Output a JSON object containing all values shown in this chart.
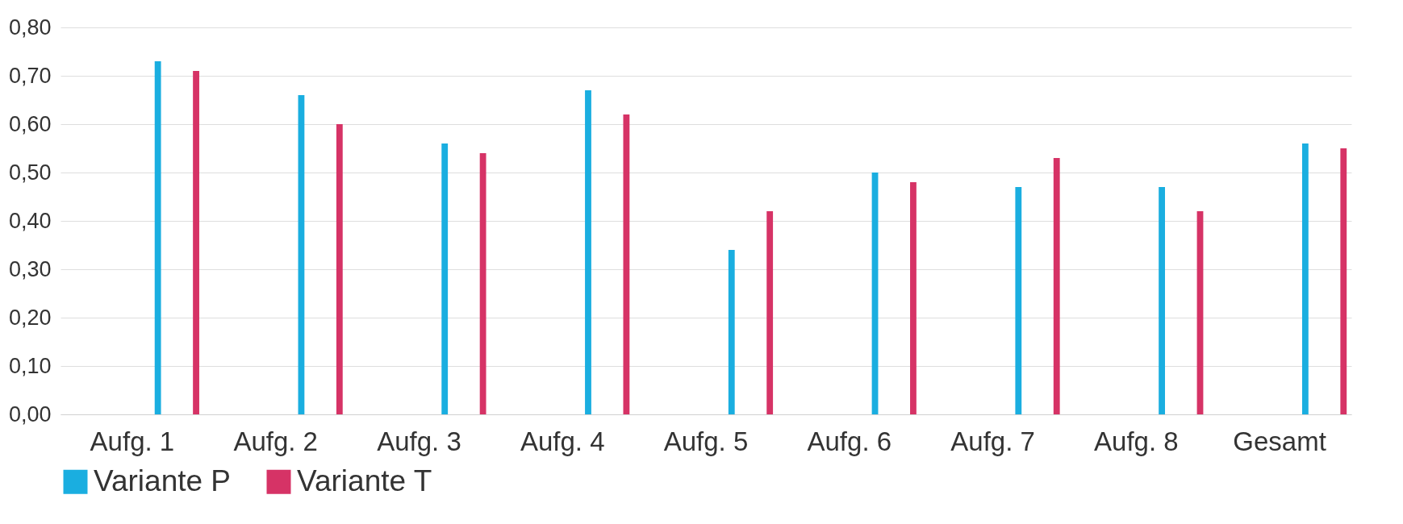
{
  "chart_data": {
    "type": "bar",
    "categories": [
      "Aufg. 1",
      "Aufg. 2",
      "Aufg. 3",
      "Aufg. 4",
      "Aufg. 5",
      "Aufg. 6",
      "Aufg. 7",
      "Aufg. 8",
      "Gesamt"
    ],
    "series": [
      {
        "name": "Variante P",
        "color": "#1aaee0",
        "values": [
          0.73,
          0.66,
          0.56,
          0.67,
          0.34,
          0.5,
          0.47,
          0.47,
          0.56
        ]
      },
      {
        "name": "Variante T",
        "color": "#d63366",
        "values": [
          0.71,
          0.6,
          0.54,
          0.62,
          0.42,
          0.48,
          0.53,
          0.42,
          0.55
        ]
      }
    ],
    "ylim": [
      0,
      0.8
    ],
    "yticks": [
      {
        "value": 0,
        "label": "0,00"
      },
      {
        "value": 0.1,
        "label": "0,10"
      },
      {
        "value": 0.2,
        "label": "0,20"
      },
      {
        "value": 0.3,
        "label": "0,30"
      },
      {
        "value": 0.4,
        "label": "0,40"
      },
      {
        "value": 0.5,
        "label": "0,50"
      },
      {
        "value": 0.6,
        "label": "0,60"
      },
      {
        "value": 0.7,
        "label": "0,70"
      },
      {
        "value": 0.8,
        "label": "0,80"
      }
    ],
    "grid": "y",
    "legend": "bottom"
  }
}
